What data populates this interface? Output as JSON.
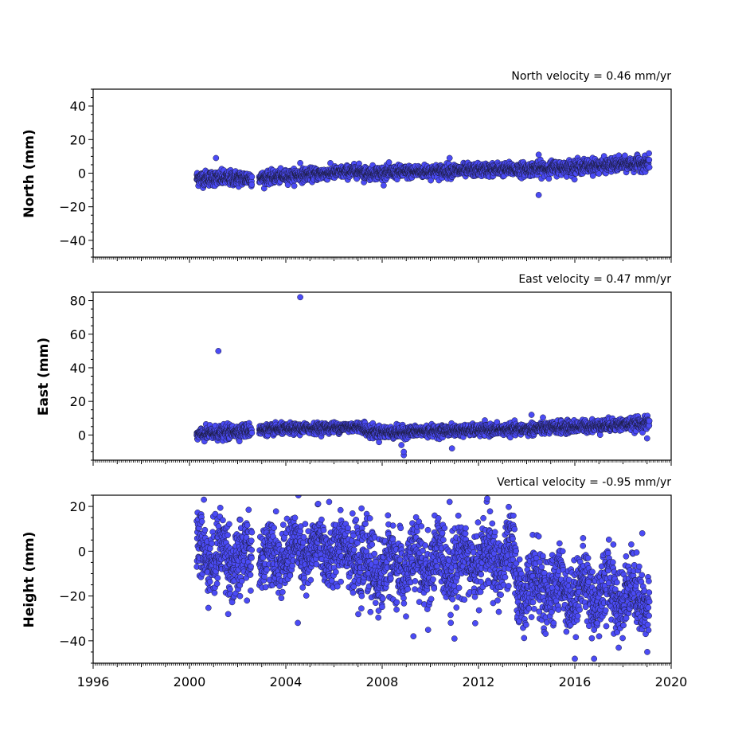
{
  "chart_data": [
    {
      "type": "scatter",
      "title": "North velocity = 0.46 mm/yr",
      "ylabel": "North (mm)",
      "xlim": [
        1996,
        2020
      ],
      "ylim": [
        -50,
        50
      ],
      "yticks": [
        -40,
        -20,
        0,
        20,
        40
      ],
      "segments": [
        {
          "start": 2000.3,
          "end": 2002.6,
          "base_start": -3,
          "base_end": -3,
          "noise": 2.2
        },
        {
          "start": 2002.9,
          "end": 2007.2,
          "base_start": -3,
          "base_end": 1.5,
          "noise": 1.8
        },
        {
          "start": 2007.2,
          "end": 2013.5,
          "base_start": 0,
          "base_end": 2.5,
          "noise": 1.9
        },
        {
          "start": 2013.5,
          "end": 2019.1,
          "base_start": 2,
          "base_end": 6,
          "noise": 2.0
        }
      ],
      "points": [
        [
          2001.1,
          9
        ],
        [
          2004.6,
          6
        ],
        [
          2014.5,
          11
        ],
        [
          2014.5,
          -13
        ],
        [
          2010.8,
          9
        ]
      ]
    },
    {
      "type": "scatter",
      "title": "East velocity = 0.47 mm/yr",
      "ylabel": "East (mm)",
      "xlim": [
        1996,
        2020
      ],
      "ylim": [
        -15,
        85
      ],
      "yticks": [
        0,
        20,
        40,
        60,
        80
      ],
      "segments": [
        {
          "start": 2000.3,
          "end": 2002.6,
          "base_start": 0,
          "base_end": 3,
          "noise": 2.0
        },
        {
          "start": 2002.9,
          "end": 2007.3,
          "base_start": 3,
          "base_end": 5,
          "noise": 1.5
        },
        {
          "start": 2007.3,
          "end": 2009.0,
          "base_start": 2,
          "base_end": 1.5,
          "noise": 1.8
        },
        {
          "start": 2009.0,
          "end": 2014.0,
          "base_start": 2,
          "base_end": 3.5,
          "noise": 1.6
        },
        {
          "start": 2014.0,
          "end": 2019.1,
          "base_start": 3.5,
          "base_end": 7,
          "noise": 1.8
        }
      ],
      "points": [
        [
          2004.6,
          82
        ],
        [
          2001.2,
          50
        ],
        [
          2008.9,
          -12
        ],
        [
          2008.9,
          -10
        ],
        [
          2010.9,
          -8
        ],
        [
          2014.2,
          12
        ],
        [
          2019.0,
          -2
        ],
        [
          2008.8,
          -6
        ]
      ]
    },
    {
      "type": "scatter",
      "title": "Vertical velocity = -0.95 mm/yr",
      "ylabel": "Height (mm)",
      "xlim": [
        1996,
        2020
      ],
      "ylim": [
        -50,
        25
      ],
      "yticks": [
        -40,
        -20,
        0,
        20
      ],
      "xticks": [
        1996,
        2000,
        2004,
        2008,
        2012,
        2016,
        2020
      ],
      "segments": [
        {
          "start": 2000.3,
          "end": 2002.6,
          "base_start": 0,
          "base_end": -5,
          "noise": 8.0
        },
        {
          "start": 2002.9,
          "end": 2007.0,
          "base_start": -2,
          "base_end": 1,
          "noise": 7.0
        },
        {
          "start": 2007.0,
          "end": 2013.5,
          "base_start": -8,
          "base_end": -3,
          "noise": 8.0
        },
        {
          "start": 2013.5,
          "end": 2019.1,
          "base_start": -15,
          "base_end": -20,
          "noise": 7.5
        }
      ],
      "points": [
        [
          2000.6,
          23
        ],
        [
          2005.8,
          22
        ],
        [
          2010.8,
          22
        ],
        [
          2016.0,
          -48
        ],
        [
          2016.8,
          -48
        ],
        [
          2009.3,
          -38
        ],
        [
          2011.0,
          -39
        ],
        [
          2004.5,
          -32
        ],
        [
          2018.8,
          8
        ],
        [
          2017.6,
          3
        ]
      ]
    }
  ]
}
